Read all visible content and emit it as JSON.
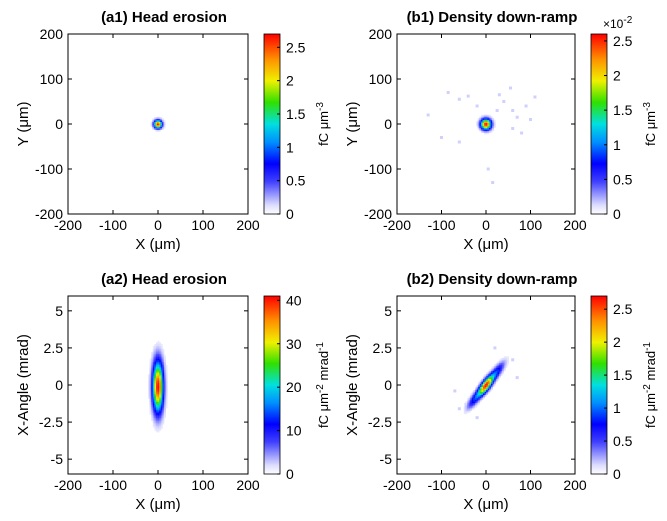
{
  "figure": {
    "panels_label": "Four heat-map panels"
  },
  "chart_data": [
    {
      "id": "a1",
      "type": "heatmap",
      "title": "(a1) Head erosion",
      "xlabel": "X (μm)",
      "ylabel": "Y (μm)",
      "xlim": [
        -200,
        200
      ],
      "ylim": [
        -200,
        200
      ],
      "xticks": [
        -200,
        -100,
        0,
        100,
        200
      ],
      "yticks": [
        -200,
        -100,
        0,
        100,
        200
      ],
      "xtick_labels": [
        "-200",
        "-100",
        "0",
        "100",
        "200"
      ],
      "ytick_labels": [
        "-200",
        "-100",
        "0",
        "100",
        "200"
      ],
      "colorbar": {
        "label_text": "fC μm",
        "label_exponent": "-3",
        "range": [
          0,
          2.7
        ],
        "ticks": [
          0,
          0.5,
          1,
          1.5,
          2,
          2.5
        ],
        "tick_labels": [
          "0",
          "0.5",
          "1",
          "1.5",
          "2",
          "2.5"
        ],
        "multiplier": ""
      },
      "spots": [
        {
          "x": 0,
          "y": 0,
          "sx": 6,
          "sy": 6,
          "peak": 2.7
        }
      ],
      "scatter": []
    },
    {
      "id": "b1",
      "type": "heatmap",
      "title": "(b1) Density down-ramp",
      "xlabel": "X (μm)",
      "ylabel": "Y (μm)",
      "xlim": [
        -200,
        200
      ],
      "ylim": [
        -200,
        200
      ],
      "xticks": [
        -200,
        -100,
        0,
        100,
        200
      ],
      "yticks": [
        -200,
        -100,
        0,
        100,
        200
      ],
      "xtick_labels": [
        "-200",
        "-100",
        "0",
        "100",
        "200"
      ],
      "ytick_labels": [
        "-200",
        "-100",
        "0",
        "100",
        "200"
      ],
      "colorbar": {
        "label_text": "fC μm",
        "label_exponent": "-3",
        "range": [
          0,
          2.6
        ],
        "ticks": [
          0,
          0.5,
          1,
          1.5,
          2,
          2.5
        ],
        "tick_labels": [
          "0",
          "0.5",
          "1",
          "1.5",
          "2",
          "2.5"
        ],
        "multiplier": "×10",
        "multiplier_exponent": "-2"
      },
      "spots": [
        {
          "x": 0,
          "y": 0,
          "sx": 8,
          "sy": 8,
          "peak": 2.6
        }
      ],
      "scatter": [
        {
          "x": -60,
          "y": 55
        },
        {
          "x": -40,
          "y": 62
        },
        {
          "x": -85,
          "y": 70
        },
        {
          "x": 40,
          "y": 50
        },
        {
          "x": 60,
          "y": 30
        },
        {
          "x": 70,
          "y": 15
        },
        {
          "x": 90,
          "y": 40
        },
        {
          "x": 100,
          "y": 10
        },
        {
          "x": 110,
          "y": 60
        },
        {
          "x": 30,
          "y": 65
        },
        {
          "x": 55,
          "y": 80
        },
        {
          "x": -20,
          "y": 40
        },
        {
          "x": -100,
          "y": -30
        },
        {
          "x": -60,
          "y": -40
        },
        {
          "x": 5,
          "y": -100
        },
        {
          "x": 15,
          "y": -130
        },
        {
          "x": 60,
          "y": -10
        },
        {
          "x": 80,
          "y": -20
        },
        {
          "x": -130,
          "y": 20
        },
        {
          "x": 25,
          "y": 30
        }
      ]
    },
    {
      "id": "a2",
      "type": "heatmap",
      "title": "(a2) Head erosion",
      "xlabel": "X (μm)",
      "ylabel": "X-Angle (mrad)",
      "xlim": [
        -200,
        200
      ],
      "ylim": [
        -6,
        6
      ],
      "xticks": [
        -200,
        -100,
        0,
        100,
        200
      ],
      "yticks": [
        -5,
        -2.5,
        0,
        2.5,
        5
      ],
      "xtick_labels": [
        "-200",
        "-100",
        "0",
        "100",
        "200"
      ],
      "ytick_labels": [
        "-5",
        "-2.5",
        "0",
        "2.5",
        "5"
      ],
      "colorbar": {
        "label_text": "fC μm",
        "label_exponent": "-2",
        "label_text2": " mrad",
        "label_exponent2": "-1",
        "range": [
          0,
          41
        ],
        "ticks": [
          0,
          10,
          20,
          30,
          40
        ],
        "tick_labels": [
          "0",
          "10",
          "20",
          "30",
          "40"
        ],
        "multiplier": ""
      },
      "spots": [
        {
          "x": 0,
          "y": -0.1,
          "sx": 8,
          "sy": 1.15,
          "peak": 41
        }
      ],
      "scatter": []
    },
    {
      "id": "b2",
      "type": "heatmap",
      "title": "(b2) Density down-ramp",
      "xlabel": "X (μm)",
      "ylabel": "X-Angle (mrad)",
      "xlim": [
        -200,
        200
      ],
      "ylim": [
        -6,
        6
      ],
      "xticks": [
        -200,
        -100,
        0,
        100,
        200
      ],
      "yticks": [
        -5,
        -2.5,
        0,
        2.5,
        5
      ],
      "xtick_labels": [
        "-200",
        "-100",
        "0",
        "100",
        "200"
      ],
      "ytick_labels": [
        "-5",
        "-2.5",
        "0",
        "2.5",
        "5"
      ],
      "colorbar": {
        "label_text": "fC μm",
        "label_exponent": "-2",
        "label_text2": " mrad",
        "label_exponent2": "-1",
        "range": [
          0,
          2.7
        ],
        "ticks": [
          0,
          0.5,
          1,
          1.5,
          2,
          2.5
        ],
        "tick_labels": [
          "0",
          "0.5",
          "1",
          "1.5",
          "2",
          "2.5"
        ],
        "multiplier": ""
      },
      "spots": [
        {
          "x": 0,
          "y": 0,
          "sx": 20,
          "sy": 0.75,
          "peak": 2.7,
          "corr": 0.92
        }
      ],
      "scatter": [
        {
          "x": -30,
          "y": -0.9
        },
        {
          "x": 30,
          "y": 0.9
        },
        {
          "x": 45,
          "y": 1.4
        },
        {
          "x": -45,
          "y": -1.3
        },
        {
          "x": 60,
          "y": 1.7
        },
        {
          "x": -60,
          "y": -1.6
        },
        {
          "x": 20,
          "y": 2.5
        },
        {
          "x": -20,
          "y": -2.2
        },
        {
          "x": 70,
          "y": 0.5
        },
        {
          "x": -70,
          "y": -0.4
        }
      ]
    }
  ]
}
